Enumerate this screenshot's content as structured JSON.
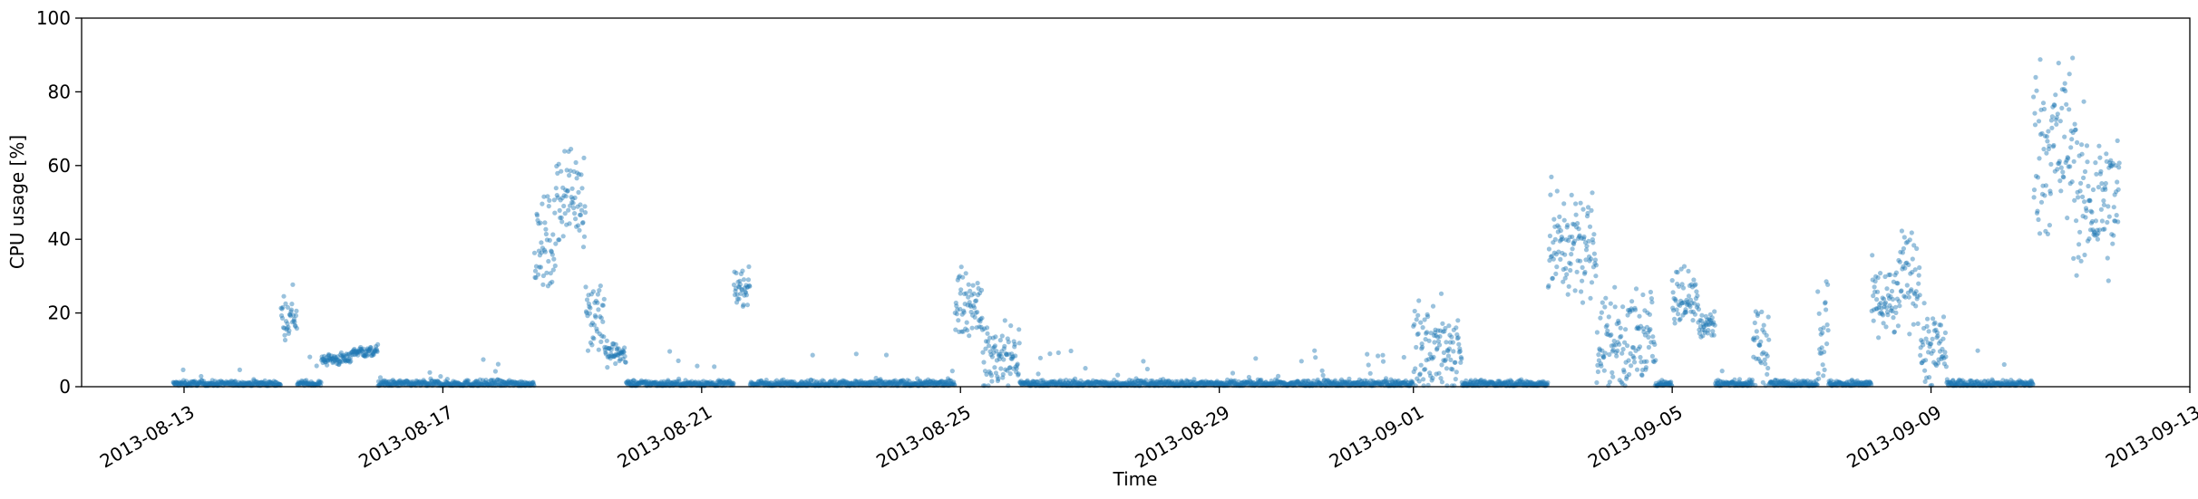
{
  "chart_data": {
    "type": "scatter",
    "title": "",
    "xlabel": "Time",
    "ylabel": "CPU usage [%]",
    "xlim": [
      "2013-08-11T10:00",
      "2013-09-13T00:00"
    ],
    "ylim": [
      0,
      100
    ],
    "yticks": [
      0,
      20,
      40,
      60,
      80,
      100
    ],
    "xticks": [
      "2013-08-13",
      "2013-08-17",
      "2013-08-21",
      "2013-08-25",
      "2013-08-29",
      "2013-09-01",
      "2013-09-05",
      "2013-09-09",
      "2013-09-13"
    ],
    "grid": false,
    "legend": "none",
    "color": "#1f77b4",
    "marker_alpha": 0.45,
    "series_segments": [
      {
        "from": "2013-08-12T20:00",
        "to": "2013-08-14T12:00",
        "level": 0.8,
        "noise": 0.4
      },
      {
        "from": "2013-08-14T12:00",
        "to": "2013-08-14T18:00",
        "level": 19,
        "noise": 3
      },
      {
        "from": "2013-08-14T18:00",
        "to": "2013-08-15T03:00",
        "level": 0.8,
        "noise": 0.4
      },
      {
        "from": "2013-08-15T03:00",
        "to": "2013-08-15T14:00",
        "level": 7.5,
        "noise": 0.8
      },
      {
        "from": "2013-08-15T14:00",
        "to": "2013-08-16T00:00",
        "level": 9.5,
        "noise": 0.8
      },
      {
        "from": "2013-08-16T00:00",
        "to": "2013-08-18T10:00",
        "level": 0.8,
        "noise": 0.5
      },
      {
        "from": "2013-08-18T10:00",
        "to": "2013-08-18T18:00",
        "level": 38,
        "noise": 6
      },
      {
        "from": "2013-08-18T18:00",
        "to": "2013-08-19T05:00",
        "level": 52,
        "noise": 6
      },
      {
        "from": "2013-08-19T05:00",
        "to": "2013-08-19T12:00",
        "level": 20,
        "noise": 6
      },
      {
        "from": "2013-08-19T12:00",
        "to": "2013-08-19T20:00",
        "level": 9,
        "noise": 1.5
      },
      {
        "from": "2013-08-19T20:00",
        "to": "2013-08-21T12:00",
        "level": 0.8,
        "noise": 0.5
      },
      {
        "from": "2013-08-21T12:00",
        "to": "2013-08-21T18:00",
        "level": 27,
        "noise": 2
      },
      {
        "from": "2013-08-21T18:00",
        "to": "2013-08-24T22:00",
        "level": 0.8,
        "noise": 0.5
      },
      {
        "from": "2013-08-24T22:00",
        "to": "2013-08-25T08:00",
        "level": 23,
        "noise": 4
      },
      {
        "from": "2013-08-25T08:00",
        "to": "2013-08-25T22:00",
        "level": 8,
        "noise": 5
      },
      {
        "from": "2013-08-25T22:00",
        "to": "2013-09-01T00:00",
        "level": 0.8,
        "noise": 0.5
      },
      {
        "from": "2013-09-01T00:00",
        "to": "2013-09-01T18:00",
        "level": 10,
        "noise": 6
      },
      {
        "from": "2013-09-01T18:00",
        "to": "2013-09-03T02:00",
        "level": 0.8,
        "noise": 0.5
      },
      {
        "from": "2013-09-03T02:00",
        "to": "2013-09-03T20:00",
        "level": 38,
        "noise": 7
      },
      {
        "from": "2013-09-03T20:00",
        "to": "2013-09-04T18:00",
        "level": 12,
        "noise": 7
      },
      {
        "from": "2013-09-04T18:00",
        "to": "2013-09-05T00:00",
        "level": 0.8,
        "noise": 0.5
      },
      {
        "from": "2013-09-05T00:00",
        "to": "2013-09-05T10:00",
        "level": 24,
        "noise": 4
      },
      {
        "from": "2013-09-05T10:00",
        "to": "2013-09-05T16:00",
        "level": 17,
        "noise": 2
      },
      {
        "from": "2013-09-05T16:00",
        "to": "2013-09-06T06:00",
        "level": 0.8,
        "noise": 0.5
      },
      {
        "from": "2013-09-06T06:00",
        "to": "2013-09-06T12:00",
        "level": 12,
        "noise": 6
      },
      {
        "from": "2013-09-06T12:00",
        "to": "2013-09-07T06:00",
        "level": 0.8,
        "noise": 0.5
      },
      {
        "from": "2013-09-07T06:00",
        "to": "2013-09-07T10:00",
        "level": 15,
        "noise": 8
      },
      {
        "from": "2013-09-07T10:00",
        "to": "2013-09-08T02:00",
        "level": 0.8,
        "noise": 0.5
      },
      {
        "from": "2013-09-08T02:00",
        "to": "2013-09-08T12:00",
        "level": 22,
        "noise": 5
      },
      {
        "from": "2013-09-08T12:00",
        "to": "2013-09-08T20:00",
        "level": 30,
        "noise": 6
      },
      {
        "from": "2013-09-08T20:00",
        "to": "2013-09-09T06:00",
        "level": 10,
        "noise": 5
      },
      {
        "from": "2013-09-09T06:00",
        "to": "2013-09-10T14:00",
        "level": 0.8,
        "noise": 0.5
      },
      {
        "from": "2013-09-10T14:00",
        "to": "2013-09-11T06:00",
        "level": 65,
        "noise": 12
      },
      {
        "from": "2013-09-11T06:00",
        "to": "2013-09-11T22:00",
        "level": 50,
        "noise": 10
      }
    ]
  }
}
